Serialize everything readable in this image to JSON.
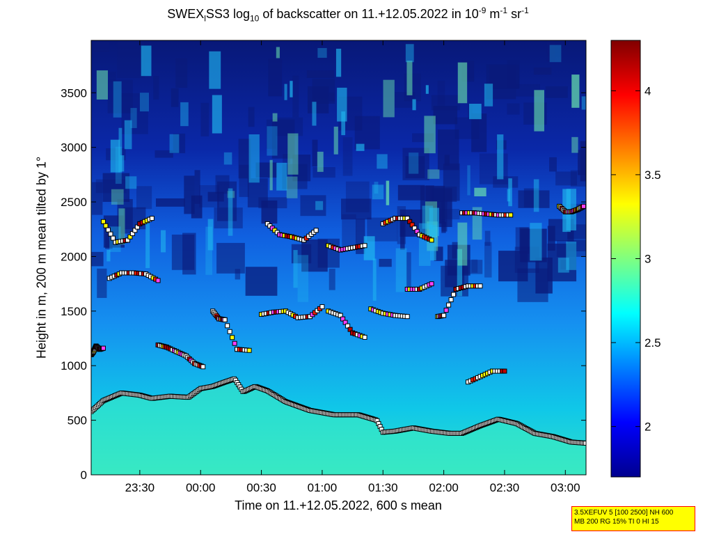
{
  "chart_data": [
    {
      "type": "heatmap",
      "title_parts": {
        "a": "SWEX",
        "a_sub": "l",
        "b": "SS3 log",
        "b_sub": "10",
        "c": " of backscatter on 11.+12.05.2022 in 10",
        "c_sup": "-9",
        "d": " m",
        "d_sup": "-1",
        "e": " sr",
        "e_sup": "-1"
      },
      "xlabel": "Time on 11.+12.05.2022, 600 s mean",
      "ylabel": "Height in m, 200 m mean tilted by 1°",
      "xlim_hours": [
        23.1,
        27.17
      ],
      "ylim": [
        0,
        3980
      ],
      "x_ticks": [
        {
          "label": "23:30",
          "hours": 23.5
        },
        {
          "label": "00:00",
          "hours": 24.0
        },
        {
          "label": "00:30",
          "hours": 24.5
        },
        {
          "label": "01:00",
          "hours": 25.0
        },
        {
          "label": "01:30",
          "hours": 25.5
        },
        {
          "label": "02:00",
          "hours": 26.0
        },
        {
          "label": "02:30",
          "hours": 26.5
        },
        {
          "label": "03:00",
          "hours": 27.0
        }
      ],
      "y_ticks": [
        0,
        500,
        1000,
        1500,
        2000,
        2500,
        3000,
        3500
      ],
      "colorbar": {
        "range": [
          1.7,
          4.3
        ],
        "ticks": [
          2,
          2.5,
          3,
          3.5,
          4
        ],
        "tick_labels": [
          "2",
          "2.5",
          "3",
          "3.5",
          "4"
        ],
        "colormap": "jet"
      },
      "boundary_layer_height": {
        "hours": [
          23.1,
          23.2,
          23.35,
          23.5,
          23.6,
          23.75,
          23.9,
          24.0,
          24.1,
          24.2,
          24.28,
          24.35,
          24.45,
          24.55,
          24.7,
          24.9,
          25.1,
          25.3,
          25.45,
          25.5,
          25.6,
          25.75,
          25.9,
          26.05,
          26.15,
          26.3,
          26.45,
          26.6,
          26.75,
          26.9,
          27.05,
          27.17
        ],
        "height_m": [
          580,
          680,
          750,
          730,
          700,
          720,
          710,
          790,
          810,
          850,
          880,
          760,
          810,
          770,
          670,
          590,
          550,
          550,
          500,
          390,
          400,
          430,
          400,
          380,
          380,
          450,
          510,
          470,
          380,
          350,
          300,
          290
        ]
      },
      "cloud_marker_layers": [
        {
          "hours": [
            23.1,
            23.12,
            23.14,
            23.17,
            23.2
          ],
          "height_m": [
            1100,
            1130,
            1180,
            1150,
            1160
          ]
        },
        {
          "hours": [
            23.65,
            23.72,
            23.8,
            23.88,
            23.95,
            24.02
          ],
          "height_m": [
            1190,
            1170,
            1130,
            1090,
            1020,
            990
          ]
        },
        {
          "hours": [
            24.1,
            24.15,
            24.2,
            24.3,
            24.4
          ],
          "height_m": [
            1500,
            1430,
            1420,
            1150,
            1140
          ]
        },
        {
          "hours": [
            24.5,
            24.6,
            24.7,
            24.8,
            24.9,
            25.0
          ],
          "height_m": [
            1470,
            1490,
            1500,
            1440,
            1450,
            1540
          ]
        },
        {
          "hours": [
            25.05,
            25.15,
            25.25,
            25.35
          ],
          "height_m": [
            1500,
            1460,
            1300,
            1260
          ]
        },
        {
          "hours": [
            25.4,
            25.5,
            25.6,
            25.7
          ],
          "height_m": [
            1520,
            1480,
            1460,
            1450
          ]
        },
        {
          "hours": [
            25.7,
            25.8,
            25.9
          ],
          "height_m": [
            1700,
            1700,
            1750
          ]
        },
        {
          "hours": [
            25.95,
            26.0,
            26.1,
            26.2,
            26.3
          ],
          "height_m": [
            1450,
            1460,
            1700,
            1730,
            1730
          ]
        },
        {
          "hours": [
            23.25,
            23.35,
            23.45,
            23.55,
            23.65
          ],
          "height_m": [
            1800,
            1850,
            1850,
            1840,
            1780
          ]
        },
        {
          "hours": [
            23.2,
            23.3,
            23.4,
            23.5,
            23.6
          ],
          "height_m": [
            2320,
            2130,
            2150,
            2300,
            2350
          ]
        },
        {
          "hours": [
            24.55,
            24.65,
            24.75,
            24.85,
            24.95
          ],
          "height_m": [
            2300,
            2200,
            2180,
            2150,
            2240
          ]
        },
        {
          "hours": [
            25.05,
            25.15,
            25.25,
            25.35
          ],
          "height_m": [
            2100,
            2060,
            2080,
            2100
          ]
        },
        {
          "hours": [
            25.5,
            25.6,
            25.7,
            25.8,
            25.9
          ],
          "height_m": [
            2300,
            2350,
            2350,
            2200,
            2150
          ]
        },
        {
          "hours": [
            26.15,
            26.25,
            26.35,
            26.45,
            26.55
          ],
          "height_m": [
            2400,
            2400,
            2390,
            2380,
            2380
          ]
        },
        {
          "hours": [
            26.2,
            26.3,
            26.4,
            26.5
          ],
          "height_m": [
            850,
            900,
            950,
            950
          ]
        },
        {
          "hours": [
            26.95,
            27.0,
            27.05,
            27.1,
            27.15
          ],
          "height_m": [
            2460,
            2410,
            2410,
            2430,
            2460
          ]
        }
      ]
    }
  ],
  "info_box": {
    "line1": "3.5XEFUV 5 [100 2500] NH 600",
    "line2": "MB 200 RG 15% TI 0 HI 15"
  }
}
